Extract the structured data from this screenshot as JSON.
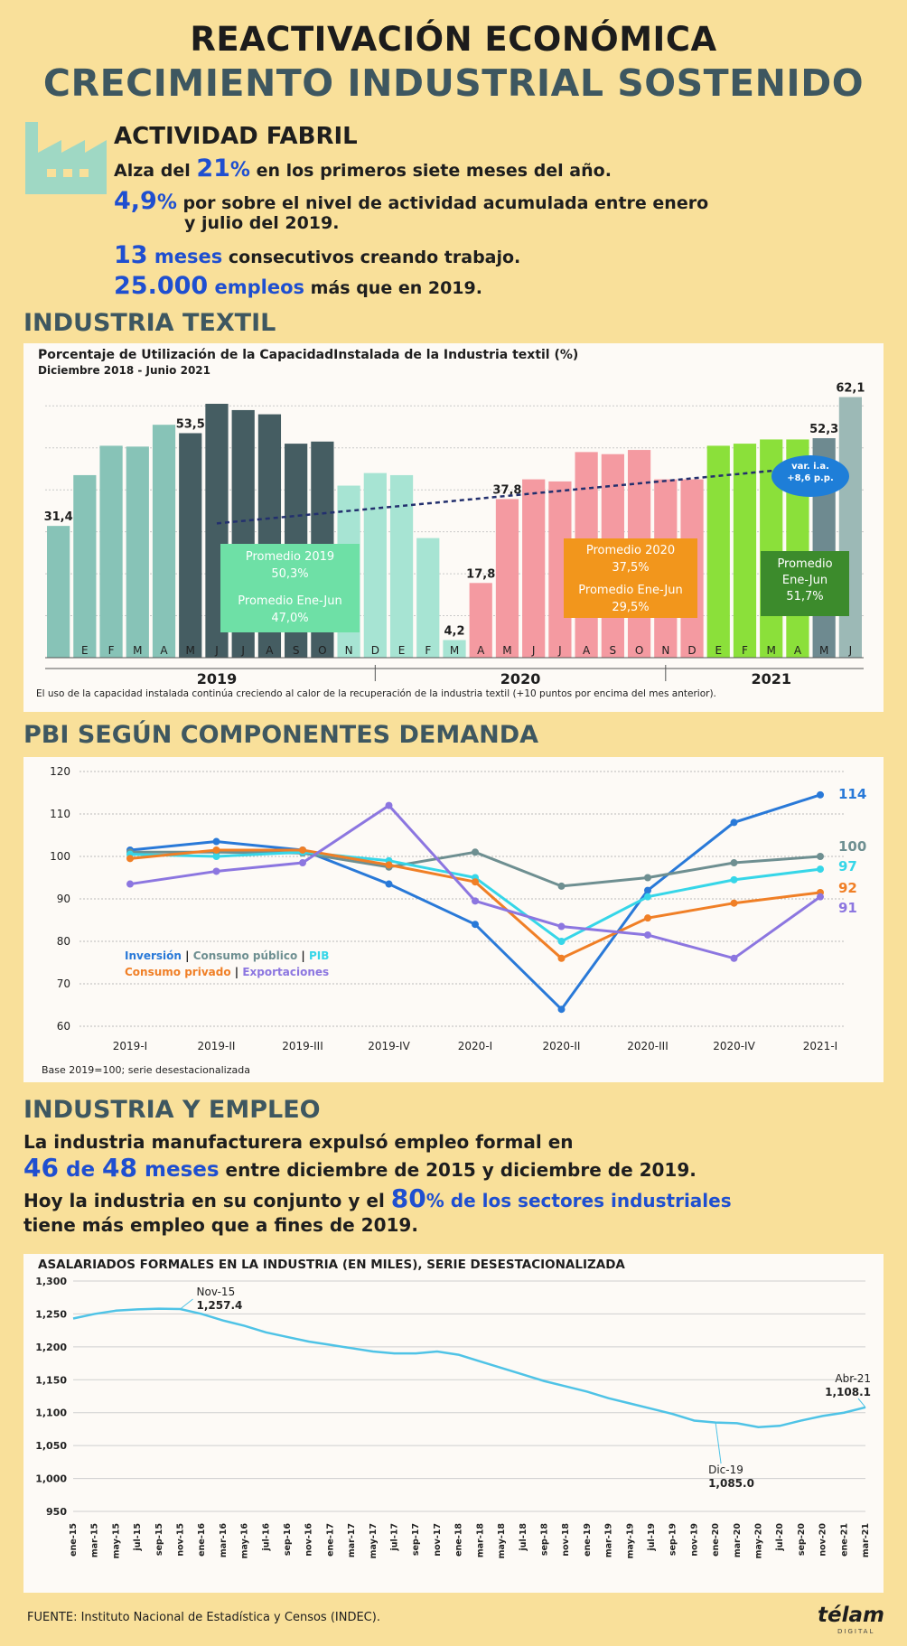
{
  "header": {
    "line1": "REACTIVACIÓN ECONÓMICA",
    "line2": "CRECIMIENTO INDUSTRIAL SOSTENIDO"
  },
  "fabril": {
    "heading": "ACTIVIDAD FABRIL",
    "l1": {
      "a": "Alza del ",
      "big": "21",
      "pct": "%",
      "b": " en los primeros siete meses del año."
    },
    "l2": {
      "big": "4,9",
      "pct": "%",
      "b": " por sobre el nivel de actividad acumulada entre enero",
      "c": "y julio del 2019."
    },
    "l3": {
      "big": "13",
      "word": " meses",
      "b": " consecutivos creando trabajo."
    },
    "l4": {
      "big": "25.000",
      "word": " empleos",
      "b": " más que en 2019."
    }
  },
  "textil": {
    "section": "INDUSTRIA TEXTIL",
    "note": "El uso de la capacidad instalada continúa creciendo al calor de la recuperación de la industria textil (+10 puntos por encima del mes anterior).",
    "boxes": {
      "p2019": [
        "Promedio 2019",
        "50,3%"
      ],
      "pEJ19": [
        "Promedio Ene-Jun",
        "47,0%"
      ],
      "p2020": [
        "Promedio 2020",
        "37,5%"
      ],
      "pEJ20": [
        "Promedio Ene-Jun",
        "29,5%"
      ],
      "pEJ21": [
        "Promedio",
        "Ene-Jun",
        "51,7%"
      ]
    },
    "var_label": [
      "var. i.a.",
      "+8,6 p.p."
    ]
  },
  "pbi": {
    "section": "PBI SEGÚN COMPONENTES DEMANDA"
  },
  "empleo": {
    "section": "INDUSTRIA Y EMPLEO",
    "l1": "La industria manufacturera expulsó empleo formal en",
    "l2": {
      "n1": "46",
      "de": " de ",
      "n2": "48",
      "meses": " meses",
      "rest": " entre diciembre de 2015 y diciembre de 2019."
    },
    "l3": {
      "a": "Hoy la industria en su conjunto y el ",
      "big": "80",
      "b": "% de los sectores industriales"
    },
    "l4": "tiene más empleo que a fines de 2019."
  },
  "footer": {
    "source": "FUENTE: Instituto Nacional de Estadística y Censos (INDEC).",
    "logo": "télam",
    "logo_sub": "DIGITAL"
  },
  "colors": {
    "bg": "#f9e09a",
    "slate": "#3e5760",
    "blue": "#1f4fd0"
  },
  "chart_data": [
    {
      "type": "bar",
      "title": "Porcentaje de Utilización de la CapacidadInstalada de la Industria textil (%)",
      "subtitle": "Diciembre 2018 - Junio 2021",
      "categories": [
        "D",
        "E",
        "F",
        "M",
        "A",
        "M",
        "J",
        "J",
        "A",
        "S",
        "O",
        "N",
        "D",
        "E",
        "F",
        "M",
        "A",
        "M",
        "J",
        "J",
        "A",
        "S",
        "O",
        "N",
        "D",
        "E",
        "F",
        "M",
        "A",
        "M",
        "J"
      ],
      "values": [
        31.4,
        43.5,
        50.5,
        50.3,
        55.5,
        53.5,
        60.5,
        59,
        58,
        51,
        51.5,
        41,
        44,
        43.5,
        28.5,
        4.2,
        17.8,
        37.8,
        42.5,
        42,
        49,
        48.5,
        49.5,
        42.5,
        42.5,
        50.5,
        51,
        52,
        52,
        52.3,
        62.1
      ],
      "value_labels": {
        "0": "31,4",
        "5": "53,5",
        "15": "4,2",
        "16": "17,8",
        "17": "37,8",
        "29": "52,3",
        "30": "62,1"
      },
      "years": [
        "2019",
        "2020",
        "2021"
      ],
      "ylim": [
        0,
        62
      ],
      "trend": [
        32,
        46
      ]
    },
    {
      "type": "line",
      "categories": [
        "2019-I",
        "2019-II",
        "2019-III",
        "2019-IV",
        "2020-I",
        "2020-II",
        "2020-III",
        "2020-IV",
        "2021-I"
      ],
      "ylim": [
        60,
        120
      ],
      "yticks": [
        60,
        70,
        80,
        90,
        100,
        110,
        120
      ],
      "legend": {
        "inv": "Inversión",
        "sep": " | ",
        "cpub": "Consumo público",
        "sep2": " | ",
        "pib": "PIB",
        "cpriv": "Consumo privado",
        "sep3": " | ",
        "exp": "Exportaciones"
      },
      "series": [
        {
          "name": "Inversión",
          "color": "#2979d8",
          "values": [
            101.5,
            103.5,
            101.5,
            93.5,
            84,
            64,
            92,
            108,
            114.5
          ],
          "end_label": "114"
        },
        {
          "name": "Consumo público",
          "color": "#6e8f91",
          "values": [
            101,
            101,
            100.8,
            97.5,
            101,
            93,
            95,
            98.5,
            100
          ],
          "end_label": "100"
        },
        {
          "name": "PIB",
          "color": "#36d6e8",
          "values": [
            100.5,
            100,
            101,
            99,
            95,
            80,
            90.5,
            94.5,
            97
          ],
          "end_label": "97"
        },
        {
          "name": "Consumo privado",
          "color": "#f07f26",
          "values": [
            99.5,
            101.5,
            101.5,
            98,
            94,
            76,
            85.5,
            89,
            91.5
          ],
          "end_label": "92"
        },
        {
          "name": "Exportaciones",
          "color": "#8c76e0",
          "values": [
            93.5,
            96.5,
            98.5,
            112,
            89.5,
            83.5,
            81.5,
            76,
            90.5
          ],
          "end_label": "91"
        }
      ],
      "footnote": "Base 2019=100; serie desestacionalizada"
    },
    {
      "type": "line",
      "title": "ASALARIADOS FORMALES EN LA INDUSTRIA (EN MILES), SERIE DESESTACIONALIZADA",
      "ylim": [
        950,
        1300
      ],
      "yticks": [
        "950",
        "1,000",
        "1,050",
        "1,100",
        "1,150",
        "1,200",
        "1,250",
        "1,300"
      ],
      "x": [
        "ene-15",
        "mar-15",
        "may-15",
        "jul-15",
        "sep-15",
        "nov-15",
        "ene-16",
        "mar-16",
        "may-16",
        "jul-16",
        "sep-16",
        "nov-16",
        "ene-17",
        "mar-17",
        "may-17",
        "jul-17",
        "sep-17",
        "nov-17",
        "ene-18",
        "mar-18",
        "may-18",
        "jul-18",
        "sep-18",
        "nov-18",
        "ene-19",
        "mar-19",
        "may-19",
        "jul-19",
        "sep-19",
        "nov-19",
        "ene-20",
        "mar-20",
        "may-20",
        "jul-20",
        "sep-20",
        "nov-20",
        "ene-21",
        "mar-21"
      ],
      "values": [
        1243,
        1250,
        1255,
        1257,
        1258,
        1257.4,
        1250,
        1240,
        1232,
        1222,
        1215,
        1208,
        1203,
        1198,
        1193,
        1190,
        1190,
        1193,
        1188,
        1178,
        1168,
        1158,
        1148,
        1140,
        1132,
        1122,
        1114,
        1106,
        1098,
        1088,
        1085,
        1084,
        1078,
        1080,
        1088,
        1095,
        1100,
        1108.1
      ],
      "annotations": [
        {
          "i": 5,
          "label": "Nov-15",
          "value": "1,257.4"
        },
        {
          "i": 30,
          "label": "Dic-19",
          "value": "1,085.0"
        },
        {
          "i": 37,
          "label": "Abr-21",
          "value": "1,108.1"
        }
      ]
    }
  ]
}
